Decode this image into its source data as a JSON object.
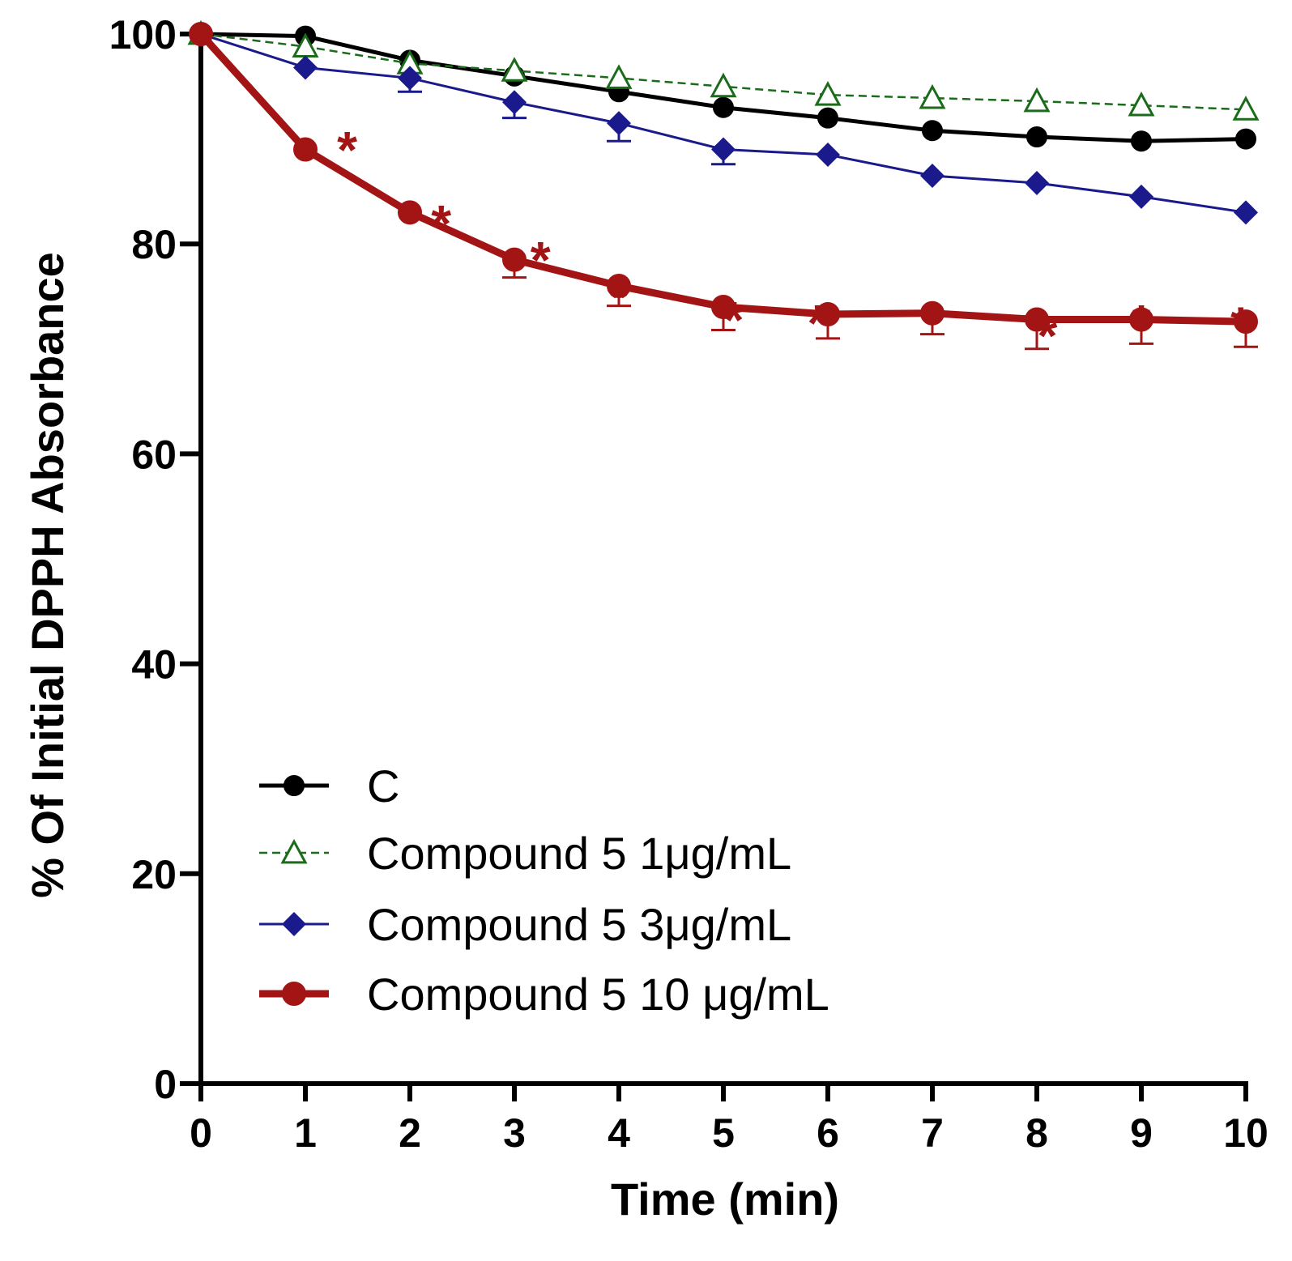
{
  "chart_data": {
    "type": "line",
    "title": "",
    "xlabel": "Time (min)",
    "ylabel": "% Of Initial DPPH Absorbance",
    "xlim": [
      0,
      10
    ],
    "ylim": [
      0,
      100
    ],
    "xticks": [
      0,
      1,
      2,
      3,
      4,
      5,
      6,
      7,
      8,
      9,
      10
    ],
    "yticks": [
      0,
      20,
      40,
      60,
      80,
      100
    ],
    "x": [
      0,
      1,
      2,
      3,
      4,
      5,
      6,
      7,
      8,
      9,
      10
    ],
    "legend_position": "bottom-left",
    "series": [
      {
        "name": "C",
        "color": "#000000",
        "marker": "circle-filled",
        "line_style": "solid",
        "values": [
          100,
          99.8,
          97.5,
          96.0,
          94.5,
          93.0,
          92.0,
          90.8,
          90.2,
          89.8,
          90.0
        ],
        "errors": [
          0,
          0,
          0,
          0,
          0,
          0,
          0,
          0,
          0,
          0,
          0
        ]
      },
      {
        "name": "Compound 5 1μg/mL",
        "color": "#1a6b1a",
        "marker": "triangle-open",
        "line_style": "dashed",
        "values": [
          100,
          98.8,
          97.2,
          96.5,
          95.8,
          95.0,
          94.2,
          93.9,
          93.6,
          93.2,
          92.8
        ],
        "errors": [
          0,
          0,
          0,
          0,
          0,
          0,
          0,
          0,
          0,
          0,
          0
        ]
      },
      {
        "name": "Compound 5 3μg/mL",
        "color": "#1a1a8c",
        "marker": "diamond-filled",
        "line_style": "solid",
        "values": [
          100,
          96.8,
          95.8,
          93.5,
          91.5,
          89.0,
          88.5,
          86.5,
          85.8,
          84.5,
          83.0
        ],
        "errors": [
          0,
          0,
          1.3,
          1.5,
          1.7,
          1.4,
          0,
          0,
          0,
          0,
          0
        ]
      },
      {
        "name": "Compound 5 10 μg/mL",
        "color": "#a31515",
        "marker": "circle-filled",
        "line_style": "solid-thick",
        "values": [
          100,
          89.0,
          83.0,
          78.5,
          76.0,
          74.0,
          73.3,
          73.4,
          72.8,
          72.8,
          72.6
        ],
        "errors": [
          0,
          0,
          0,
          1.7,
          1.9,
          2.2,
          2.3,
          2.0,
          2.8,
          2.3,
          2.4
        ]
      }
    ],
    "annotations": {
      "text": "*",
      "color": "#a31515",
      "positions": [
        {
          "x": 1.4,
          "y": 90.5
        },
        {
          "x": 2.3,
          "y": 83.5
        },
        {
          "x": 3.25,
          "y": 80.0
        },
        {
          "x": 4.0,
          "y": 76.5
        },
        {
          "x": 5.1,
          "y": 74.3
        },
        {
          "x": 5.9,
          "y": 74.0
        },
        {
          "x": 7.0,
          "y": 74.0
        },
        {
          "x": 8.1,
          "y": 72.8
        },
        {
          "x": 9.0,
          "y": 74.0
        },
        {
          "x": 9.95,
          "y": 73.8
        }
      ]
    }
  }
}
